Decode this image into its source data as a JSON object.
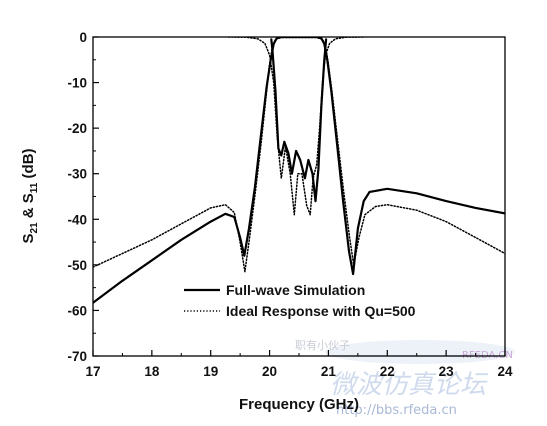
{
  "chart_data": {
    "type": "line",
    "xlabel": "Frequency (GHz)",
    "ylabel_parts": [
      "S",
      "21",
      " & S",
      "11",
      " (dB)"
    ],
    "xlim": [
      17,
      24
    ],
    "ylim": [
      -70,
      0
    ],
    "xticks": [
      "17",
      "18",
      "19",
      "20",
      "21",
      "22",
      "23",
      "24"
    ],
    "yticks": [
      "0",
      "-10",
      "-20",
      "-30",
      "-40",
      "-50",
      "-60",
      "-70"
    ],
    "legend_placement": "lower-center",
    "series": [
      {
        "name": "Full-wave Simulation",
        "style": "solid",
        "color": "#000000",
        "curves": [
          [
            [
              17.0,
              -58.3
            ],
            [
              17.5,
              -53.5
            ],
            [
              18.0,
              -49.0
            ],
            [
              18.5,
              -44.5
            ],
            [
              19.0,
              -40.5
            ],
            [
              19.25,
              -38.8
            ],
            [
              19.4,
              -39.5
            ],
            [
              19.5,
              -44
            ],
            [
              19.57,
              -48
            ],
            [
              19.65,
              -42
            ],
            [
              19.75,
              -33
            ],
            [
              19.85,
              -22
            ],
            [
              19.95,
              -11
            ],
            [
              20.02,
              -5
            ],
            [
              20.07,
              -1.5
            ],
            [
              20.12,
              -0.3
            ],
            [
              20.2,
              0
            ],
            [
              20.8,
              0
            ],
            [
              20.88,
              -0.3
            ],
            [
              20.93,
              -1.5
            ],
            [
              20.98,
              -5
            ],
            [
              21.05,
              -12
            ],
            [
              21.15,
              -24
            ],
            [
              21.25,
              -36
            ],
            [
              21.35,
              -47
            ],
            [
              21.42,
              -52
            ],
            [
              21.5,
              -42
            ],
            [
              21.6,
              -36
            ],
            [
              21.7,
              -34
            ],
            [
              22.0,
              -33.3
            ],
            [
              22.5,
              -34.3
            ],
            [
              23.0,
              -36
            ],
            [
              23.5,
              -37.5
            ],
            [
              24.0,
              -38.7
            ]
          ],
          [
            [
              20.03,
              -0.5
            ],
            [
              20.05,
              -3
            ],
            [
              20.1,
              -12
            ],
            [
              20.15,
              -24.5
            ],
            [
              20.2,
              -26
            ],
            [
              20.25,
              -23
            ],
            [
              20.32,
              -25.5
            ],
            [
              20.38,
              -30
            ],
            [
              20.45,
              -25
            ],
            [
              20.52,
              -27
            ],
            [
              20.6,
              -31
            ],
            [
              20.66,
              -27
            ],
            [
              20.73,
              -30
            ],
            [
              20.78,
              -36
            ],
            [
              20.83,
              -29
            ],
            [
              20.88,
              -15
            ],
            [
              20.93,
              -5
            ],
            [
              20.96,
              -0.5
            ]
          ]
        ]
      },
      {
        "name": "Ideal Response with Qu=500",
        "style": "dotted",
        "color": "#000000",
        "curves": [
          [
            [
              17.0,
              -50.5
            ],
            [
              17.5,
              -47.5
            ],
            [
              18.0,
              -44.5
            ],
            [
              18.5,
              -41
            ],
            [
              19.0,
              -37.5
            ],
            [
              19.25,
              -36.8
            ],
            [
              19.4,
              -38.5
            ],
            [
              19.5,
              -45
            ],
            [
              19.58,
              -51.5
            ],
            [
              19.66,
              -44
            ],
            [
              19.76,
              -34
            ],
            [
              19.86,
              -23
            ],
            [
              19.95,
              -12
            ],
            [
              20.0,
              -6
            ],
            [
              20.05,
              -2
            ],
            [
              20.1,
              -0.5
            ],
            [
              20.2,
              -0.1
            ],
            [
              20.8,
              -0.1
            ],
            [
              20.9,
              -0.5
            ],
            [
              20.95,
              -2
            ],
            [
              21.0,
              -6
            ],
            [
              21.06,
              -12
            ],
            [
              21.16,
              -23
            ],
            [
              21.26,
              -34
            ],
            [
              21.36,
              -44
            ],
            [
              21.43,
              -50
            ],
            [
              21.52,
              -44
            ],
            [
              21.62,
              -39
            ],
            [
              21.8,
              -37.2
            ],
            [
              22.0,
              -36.8
            ],
            [
              22.5,
              -38
            ],
            [
              23.0,
              -40.5
            ],
            [
              23.5,
              -44
            ],
            [
              24.0,
              -47.5
            ]
          ],
          [
            [
              19.3,
              0
            ],
            [
              19.6,
              -0.05
            ],
            [
              19.8,
              -0.4
            ],
            [
              19.92,
              -1.4
            ],
            [
              20.0,
              -4
            ],
            [
              20.07,
              -10
            ],
            [
              20.13,
              -22
            ],
            [
              20.2,
              -31
            ],
            [
              20.27,
              -24
            ],
            [
              20.35,
              -30
            ],
            [
              20.42,
              -39
            ],
            [
              20.48,
              -30
            ],
            [
              20.55,
              -30
            ],
            [
              20.63,
              -37
            ],
            [
              20.69,
              -39
            ],
            [
              20.74,
              -31
            ],
            [
              20.8,
              -28
            ],
            [
              20.85,
              -20
            ],
            [
              20.9,
              -10
            ],
            [
              20.95,
              -4
            ],
            [
              21.02,
              -1.4
            ],
            [
              21.12,
              -0.4
            ],
            [
              21.3,
              -0.05
            ],
            [
              21.6,
              0
            ]
          ]
        ]
      }
    ]
  },
  "watermark": {
    "forum_text": "微波仿真论坛",
    "url_text": "http://bbs.rfeda.cn",
    "top_text": "职有小伙子",
    "brand_text": "RFEDA.CN"
  }
}
